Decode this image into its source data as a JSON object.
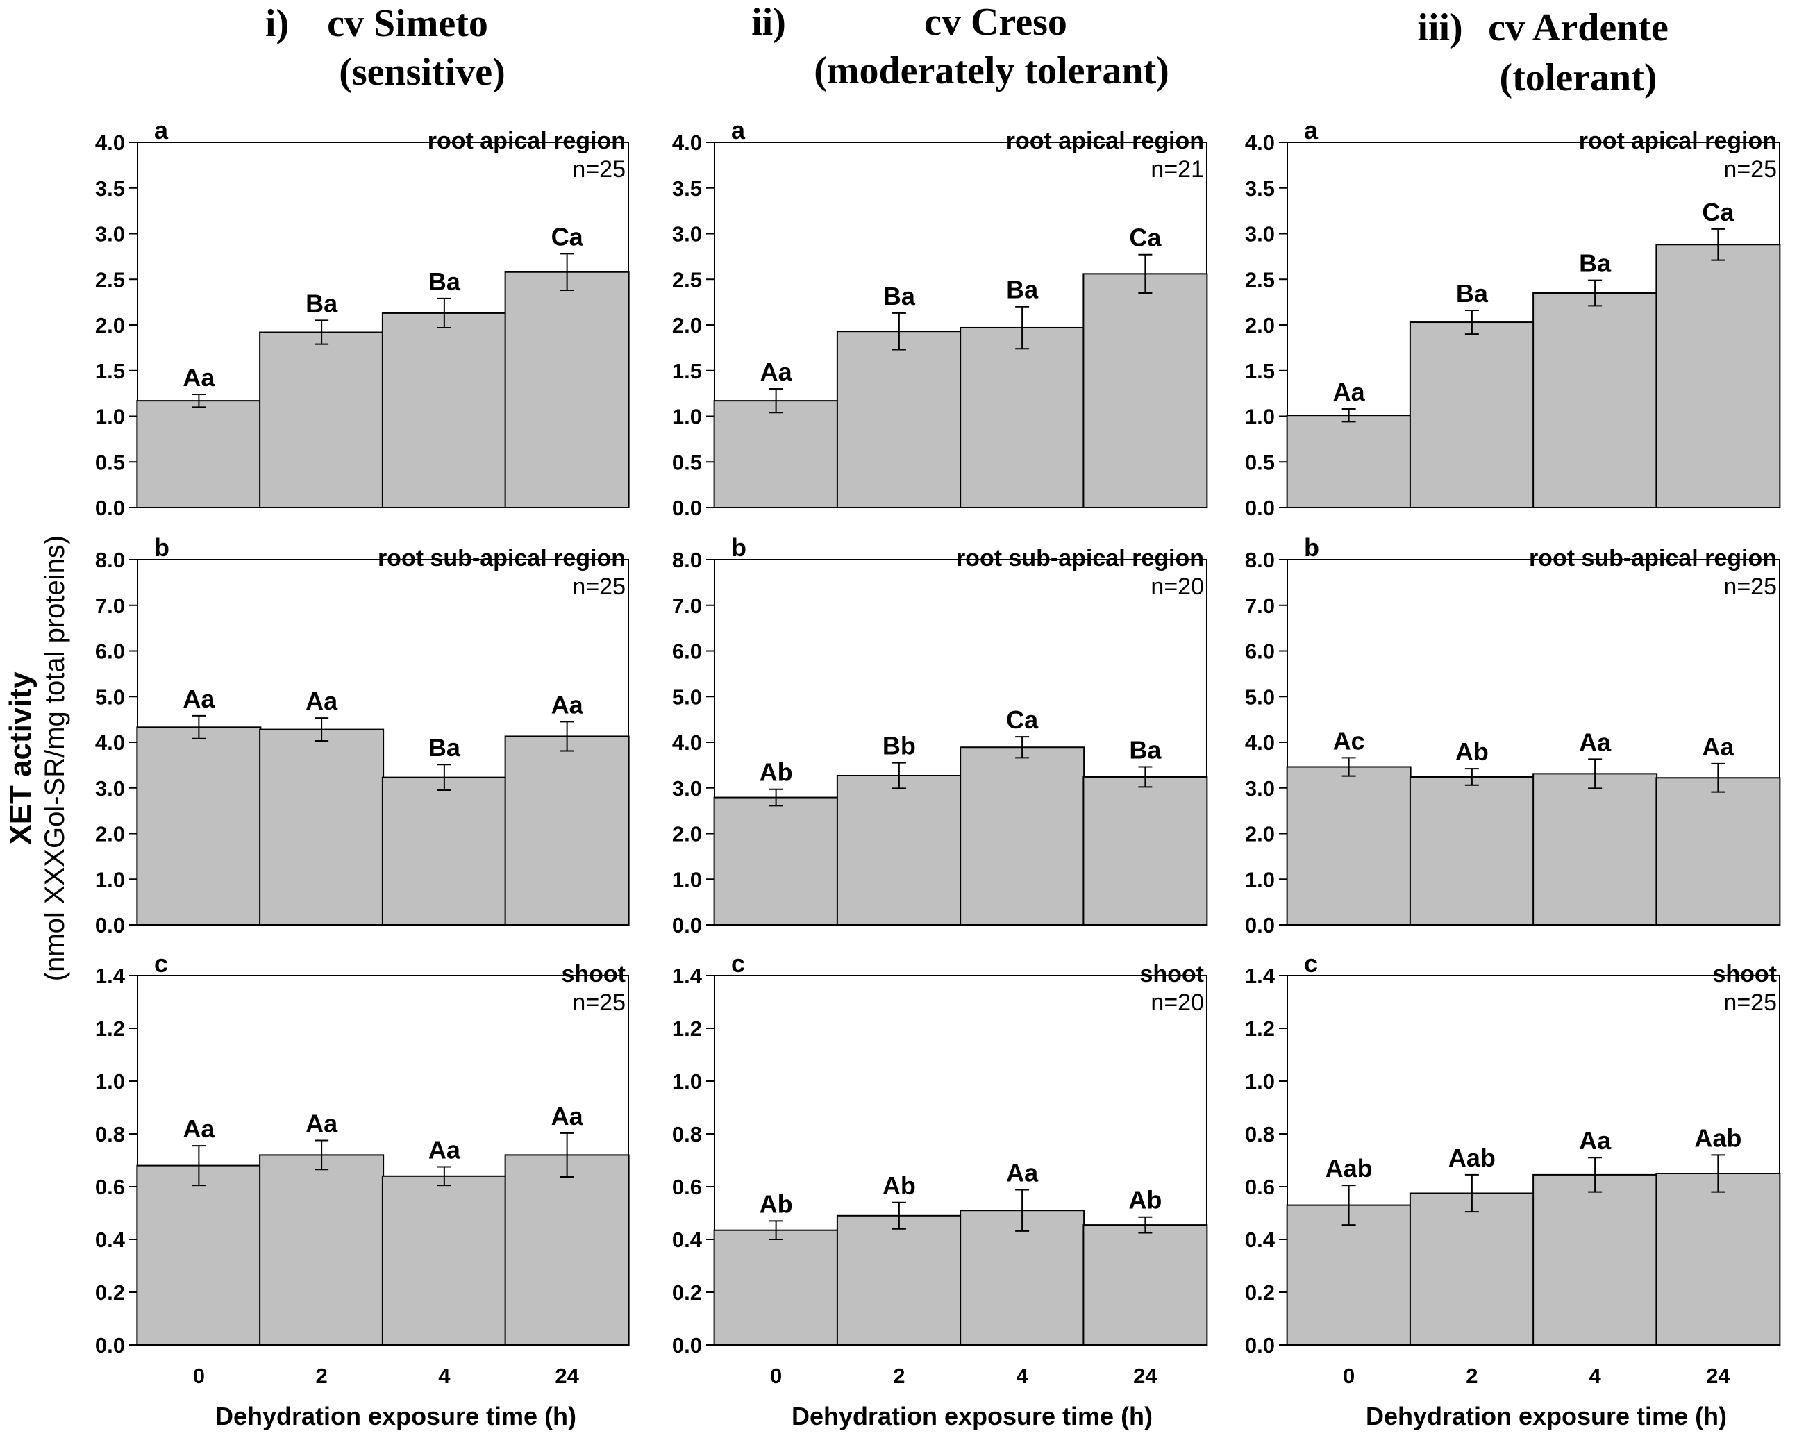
{
  "figure": {
    "y_axis_title": "XET activity",
    "y_axis_subtitle": "(nmol XXXGol-SR/mg total proteins)",
    "x_axis_label": "Dehydration exposure time (h)",
    "columns": [
      {
        "roman": "i)",
        "title_line1": "cv Simeto",
        "title_line2": "(sensitive)"
      },
      {
        "roman": "ii)",
        "title_line1": "cv Creso",
        "title_line2": "(moderately tolerant)"
      },
      {
        "roman": "iii)",
        "title_line1": "cv Ardente",
        "title_line2": "(tolerant)"
      }
    ],
    "colors": {
      "bar_fill": "#c0c0c0",
      "bar_stroke": "#000000",
      "axis": "#000000",
      "text": "#000000"
    }
  },
  "chart_data": [
    {
      "type": "bar",
      "cultivar": "cv Simeto",
      "panel": "a",
      "region": "root apical region",
      "n": "n=25",
      "categories": [
        "0",
        "2",
        "4",
        "24"
      ],
      "values": [
        1.17,
        1.92,
        2.13,
        2.58
      ],
      "errors": [
        0.07,
        0.13,
        0.16,
        0.2
      ],
      "letters": [
        "Aa",
        "Ba",
        "Ba",
        "Ca"
      ],
      "ylim": [
        0,
        4.0
      ],
      "yticks": [
        "0.0",
        "0.5",
        "1.0",
        "1.5",
        "2.0",
        "2.5",
        "3.0",
        "3.5",
        "4.0"
      ]
    },
    {
      "type": "bar",
      "cultivar": "cv Creso",
      "panel": "a",
      "region": "root apical region",
      "n": "n=21",
      "categories": [
        "0",
        "2",
        "4",
        "24"
      ],
      "values": [
        1.17,
        1.93,
        1.97,
        2.56
      ],
      "errors": [
        0.13,
        0.2,
        0.23,
        0.21
      ],
      "letters": [
        "Aa",
        "Ba",
        "Ba",
        "Ca"
      ],
      "ylim": [
        0,
        4.0
      ],
      "yticks": [
        "0.0",
        "0.5",
        "1.0",
        "1.5",
        "2.0",
        "2.5",
        "3.0",
        "3.5",
        "4.0"
      ]
    },
    {
      "type": "bar",
      "cultivar": "cv Ardente",
      "panel": "a",
      "region": "root apical region",
      "n": "n=25",
      "categories": [
        "0",
        "2",
        "4",
        "24"
      ],
      "values": [
        1.01,
        2.03,
        2.35,
        2.88
      ],
      "errors": [
        0.07,
        0.13,
        0.14,
        0.17
      ],
      "letters": [
        "Aa",
        "Ba",
        "Ba",
        "Ca"
      ],
      "ylim": [
        0,
        4.0
      ],
      "yticks": [
        "0.0",
        "0.5",
        "1.0",
        "1.5",
        "2.0",
        "2.5",
        "3.0",
        "3.5",
        "4.0"
      ]
    },
    {
      "type": "bar",
      "cultivar": "cv Simeto",
      "panel": "b",
      "region": "root sub-apical region",
      "n": "n=25",
      "categories": [
        "0",
        "2",
        "4",
        "24"
      ],
      "values": [
        4.33,
        4.28,
        3.23,
        4.13
      ],
      "errors": [
        0.25,
        0.25,
        0.28,
        0.32
      ],
      "letters": [
        "Aa",
        "Aa",
        "Ba",
        "Aa"
      ],
      "ylim": [
        0,
        8.0
      ],
      "yticks": [
        "0.0",
        "1.0",
        "2.0",
        "3.0",
        "4.0",
        "5.0",
        "6.0",
        "7.0",
        "8.0"
      ]
    },
    {
      "type": "bar",
      "cultivar": "cv Creso",
      "panel": "b",
      "region": "root sub-apical region",
      "n": "n=20",
      "categories": [
        "0",
        "2",
        "4",
        "24"
      ],
      "values": [
        2.79,
        3.27,
        3.89,
        3.24
      ],
      "errors": [
        0.18,
        0.28,
        0.23,
        0.22
      ],
      "letters": [
        "Ab",
        "Bb",
        "Ca",
        "Ba"
      ],
      "ylim": [
        0,
        8.0
      ],
      "yticks": [
        "0.0",
        "1.0",
        "2.0",
        "3.0",
        "4.0",
        "5.0",
        "6.0",
        "7.0",
        "8.0"
      ]
    },
    {
      "type": "bar",
      "cultivar": "cv Ardente",
      "panel": "b",
      "region": "root sub-apical region",
      "n": "n=25",
      "categories": [
        "0",
        "2",
        "4",
        "24"
      ],
      "values": [
        3.46,
        3.24,
        3.31,
        3.22
      ],
      "errors": [
        0.2,
        0.18,
        0.32,
        0.31
      ],
      "letters": [
        "Ac",
        "Ab",
        "Aa",
        "Aa"
      ],
      "ylim": [
        0,
        8.0
      ],
      "yticks": [
        "0.0",
        "1.0",
        "2.0",
        "3.0",
        "4.0",
        "5.0",
        "6.0",
        "7.0",
        "8.0"
      ]
    },
    {
      "type": "bar",
      "cultivar": "cv Simeto",
      "panel": "c",
      "region": "shoot",
      "n": "n=25",
      "categories": [
        "0",
        "2",
        "4",
        "24"
      ],
      "values": [
        0.68,
        0.72,
        0.64,
        0.72
      ],
      "errors": [
        0.075,
        0.055,
        0.035,
        0.083
      ],
      "letters": [
        "Aa",
        "Aa",
        "Aa",
        "Aa"
      ],
      "ylim": [
        0,
        1.4
      ],
      "yticks": [
        "0.0",
        "0.2",
        "0.4",
        "0.6",
        "0.8",
        "1.0",
        "1.2",
        "1.4"
      ]
    },
    {
      "type": "bar",
      "cultivar": "cv Creso",
      "panel": "c",
      "region": "shoot",
      "n": "n=20",
      "categories": [
        "0",
        "2",
        "4",
        "24"
      ],
      "values": [
        0.435,
        0.49,
        0.51,
        0.455
      ],
      "errors": [
        0.035,
        0.05,
        0.078,
        0.03
      ],
      "letters": [
        "Ab",
        "Ab",
        "Aa",
        "Ab"
      ],
      "ylim": [
        0,
        1.4
      ],
      "yticks": [
        "0.0",
        "0.2",
        "0.4",
        "0.6",
        "0.8",
        "1.0",
        "1.2",
        "1.4"
      ]
    },
    {
      "type": "bar",
      "cultivar": "cv Ardente",
      "panel": "c",
      "region": "shoot",
      "n": "n=25",
      "categories": [
        "0",
        "2",
        "4",
        "24"
      ],
      "values": [
        0.53,
        0.575,
        0.645,
        0.65
      ],
      "errors": [
        0.075,
        0.07,
        0.065,
        0.07
      ],
      "letters": [
        "Aab",
        "Aab",
        "Aa",
        "Aab"
      ],
      "ylim": [
        0,
        1.4
      ],
      "yticks": [
        "0.0",
        "0.2",
        "0.4",
        "0.6",
        "0.8",
        "1.0",
        "1.2",
        "1.4"
      ]
    }
  ]
}
